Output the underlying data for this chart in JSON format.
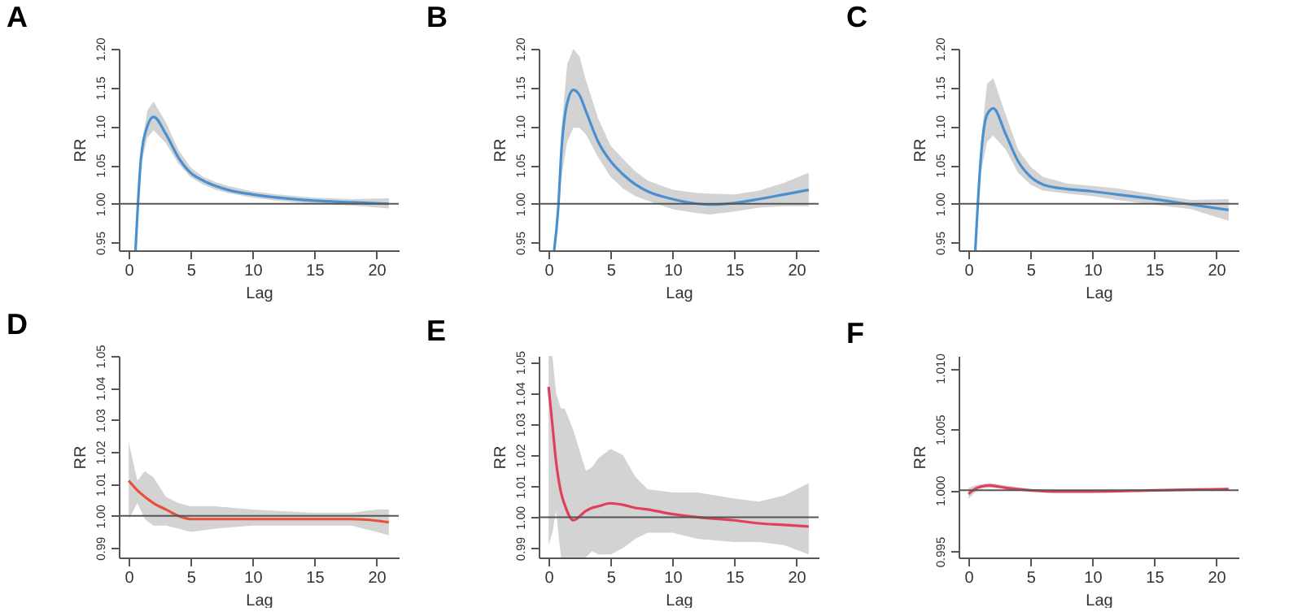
{
  "chart_data": [
    {
      "type": "line",
      "title": "A",
      "xlabel": "Lag",
      "ylabel": "RR",
      "x": [
        0.55,
        1,
        1.5,
        2,
        3,
        4,
        5,
        6,
        7,
        8,
        10,
        12,
        15,
        18,
        21
      ],
      "xlim": [
        -0.8,
        21.8
      ],
      "xticks": [
        0,
        5,
        10,
        15,
        20
      ],
      "ylim": [
        0.94,
        1.2
      ],
      "yticks": [
        {
          "value": 0.95,
          "label": "0.95"
        },
        {
          "value": 1,
          "label": "1.00"
        },
        {
          "value": 1.05,
          "label": "1.05"
        },
        {
          "value": 1.1,
          "label": "1.10"
        },
        {
          "value": 1.15,
          "label": "1.15"
        },
        {
          "value": 1.2,
          "label": "1.20"
        }
      ],
      "series": [
        {
          "color": "#4a90d0",
          "values": [
            0.94,
            1.06,
            1.1,
            1.112,
            1.09,
            1.06,
            1.04,
            1.03,
            1.023,
            1.018,
            1.012,
            1.008,
            1.004,
            1.002,
            1.0
          ],
          "lower": [
            0.94,
            1.05,
            1.085,
            1.095,
            1.078,
            1.052,
            1.034,
            1.025,
            1.018,
            1.014,
            1.008,
            1.004,
            1.0,
            0.998,
            0.994
          ],
          "upper": [
            0.94,
            1.07,
            1.12,
            1.132,
            1.105,
            1.07,
            1.047,
            1.035,
            1.028,
            1.023,
            1.016,
            1.012,
            1.008,
            1.006,
            1.007
          ]
        }
      ],
      "ref_lines": [
        {
          "axis": "y",
          "value": 1,
          "color": "#555555"
        }
      ]
    },
    {
      "type": "line",
      "title": "B",
      "xlabel": "Lag",
      "ylabel": "RR",
      "x": [
        0.45,
        0.8,
        1,
        1.5,
        2,
        2.5,
        3,
        4,
        5,
        6,
        7,
        8,
        10,
        12,
        13,
        15,
        17,
        19,
        21
      ],
      "xlim": [
        -0.8,
        21.8
      ],
      "xticks": [
        0,
        5,
        10,
        15,
        20
      ],
      "ylim": [
        0.94,
        1.2
      ],
      "yticks": [
        {
          "value": 0.95,
          "label": "0.95"
        },
        {
          "value": 1,
          "label": "1.00"
        },
        {
          "value": 1.05,
          "label": "1.05"
        },
        {
          "value": 1.1,
          "label": "1.10"
        },
        {
          "value": 1.15,
          "label": "1.15"
        },
        {
          "value": 1.2,
          "label": "1.20"
        }
      ],
      "series": [
        {
          "color": "#4a90d0",
          "values": [
            0.94,
            1.0,
            1.06,
            1.13,
            1.147,
            1.14,
            1.12,
            1.08,
            1.055,
            1.038,
            1.025,
            1.016,
            1.006,
            1.0,
            0.999,
            1.001,
            1.006,
            1.012,
            1.018
          ],
          "lower": [
            0.94,
            0.99,
            1.03,
            1.08,
            1.098,
            1.098,
            1.09,
            1.06,
            1.035,
            1.02,
            1.01,
            1.004,
            0.993,
            0.988,
            0.986,
            0.99,
            0.995,
            0.997,
            0.997
          ],
          "upper": [
            0.94,
            1.01,
            1.09,
            1.18,
            1.2,
            1.19,
            1.16,
            1.11,
            1.075,
            1.058,
            1.042,
            1.03,
            1.018,
            1.014,
            1.013,
            1.012,
            1.017,
            1.027,
            1.04
          ]
        }
      ],
      "ref_lines": [
        {
          "axis": "y",
          "value": 1,
          "color": "#555555"
        }
      ]
    },
    {
      "type": "line",
      "title": "C",
      "xlabel": "Lag",
      "ylabel": "RR",
      "x": [
        0.55,
        1,
        1.5,
        2,
        3,
        4,
        5,
        6,
        8,
        10,
        12,
        15,
        18,
        21
      ],
      "xlim": [
        -0.8,
        21.8
      ],
      "xticks": [
        0,
        5,
        10,
        15,
        20
      ],
      "ylim": [
        0.94,
        1.2
      ],
      "yticks": [
        {
          "value": 0.95,
          "label": "0.95"
        },
        {
          "value": 1,
          "label": "1.00"
        },
        {
          "value": 1.05,
          "label": "1.05"
        },
        {
          "value": 1.1,
          "label": "1.10"
        },
        {
          "value": 1.15,
          "label": "1.15"
        },
        {
          "value": 1.2,
          "label": "1.20"
        }
      ],
      "series": [
        {
          "color": "#4a90d0",
          "values": [
            0.94,
            1.06,
            1.115,
            1.123,
            1.09,
            1.055,
            1.035,
            1.025,
            1.019,
            1.016,
            1.012,
            1.006,
            0.999,
            0.992
          ],
          "lower": [
            0.94,
            1.04,
            1.08,
            1.088,
            1.07,
            1.04,
            1.025,
            1.017,
            1.013,
            1.01,
            1.005,
            0.999,
            0.993,
            0.978
          ],
          "upper": [
            0.94,
            1.08,
            1.155,
            1.162,
            1.115,
            1.07,
            1.048,
            1.035,
            1.026,
            1.023,
            1.02,
            1.012,
            1.005,
            1.006
          ]
        }
      ],
      "ref_lines": [
        {
          "axis": "y",
          "value": 1,
          "color": "#555555"
        }
      ]
    },
    {
      "type": "line",
      "title": "D",
      "xlabel": "Lag",
      "ylabel": "RR",
      "x": [
        0,
        0.7,
        1.3,
        2,
        3,
        4,
        5,
        7,
        10,
        15,
        18,
        20,
        21
      ],
      "xlim": [
        -0.8,
        21.8
      ],
      "xticks": [
        0,
        5,
        10,
        15,
        20
      ],
      "ylim": [
        0.987,
        1.05
      ],
      "yticks": [
        {
          "value": 0.99,
          "label": "0.99"
        },
        {
          "value": 1,
          "label": "1.00"
        },
        {
          "value": 1.01,
          "label": "1.01"
        },
        {
          "value": 1.02,
          "label": "1.02"
        },
        {
          "value": 1.03,
          "label": "1.03"
        },
        {
          "value": 1.04,
          "label": "1.04"
        },
        {
          "value": 1.05,
          "label": "1.05"
        }
      ],
      "series": [
        {
          "color": "#e8503a",
          "values": [
            1.011,
            1.008,
            1.006,
            1.004,
            1.002,
            1.0,
            0.999,
            0.999,
            0.999,
            0.999,
            0.999,
            0.9985,
            0.998
          ],
          "lower": [
            0.999,
            1.004,
            0.999,
            0.997,
            0.997,
            0.996,
            0.995,
            0.996,
            0.997,
            0.997,
            0.997,
            0.995,
            0.994
          ],
          "upper": [
            1.023,
            1.011,
            1.014,
            1.012,
            1.006,
            1.004,
            1.003,
            1.003,
            1.002,
            1.001,
            1.001,
            1.002,
            1.002
          ]
        }
      ],
      "ref_lines": [
        {
          "axis": "y",
          "value": 1,
          "color": "#555555"
        }
      ]
    },
    {
      "type": "line",
      "title": "E",
      "xlabel": "Lag",
      "ylabel": "RR",
      "x": [
        0,
        0.3,
        0.6,
        1,
        1.3,
        2,
        3,
        3.5,
        4,
        5,
        6,
        7,
        8,
        10,
        12,
        15,
        17,
        19,
        21
      ],
      "xlim": [
        -0.8,
        21.8
      ],
      "xticks": [
        0,
        5,
        10,
        15,
        20
      ],
      "ylim": [
        0.987,
        1.052
      ],
      "yticks": [
        {
          "value": 0.99,
          "label": "0.99"
        },
        {
          "value": 1,
          "label": "1.00"
        },
        {
          "value": 1.01,
          "label": "1.01"
        },
        {
          "value": 1.02,
          "label": "1.02"
        },
        {
          "value": 1.03,
          "label": "1.03"
        },
        {
          "value": 1.04,
          "label": "1.04"
        },
        {
          "value": 1.05,
          "label": "1.05"
        }
      ],
      "series": [
        {
          "color": "#e0405a",
          "values": [
            1.042,
            1.03,
            1.018,
            1.008,
            1.004,
            0.999,
            1.002,
            1.003,
            1.0035,
            1.0045,
            1.004,
            1.003,
            1.0025,
            1.001,
            1.0,
            0.999,
            0.998,
            0.9975,
            0.997
          ],
          "lower": [
            0.991,
            0.995,
            1.002,
            0.987,
            0.987,
            0.987,
            0.987,
            0.989,
            0.988,
            0.988,
            0.99,
            0.993,
            0.995,
            0.995,
            0.993,
            0.992,
            0.992,
            0.991,
            0.988
          ],
          "upper": [
            1.052,
            1.052,
            1.04,
            1.035,
            1.035,
            1.028,
            1.015,
            1.016,
            1.019,
            1.022,
            1.02,
            1.013,
            1.009,
            1.008,
            1.008,
            1.006,
            1.005,
            1.007,
            1.011
          ]
        }
      ],
      "ref_lines": [
        {
          "axis": "y",
          "value": 1,
          "color": "#555555"
        }
      ]
    },
    {
      "type": "line",
      "title": "F",
      "xlabel": "Lag",
      "ylabel": "RR",
      "x": [
        0,
        0.5,
        1,
        1.7,
        3,
        5,
        7,
        10,
        15,
        21
      ],
      "xlim": [
        -0.8,
        21.8
      ],
      "xticks": [
        0,
        5,
        10,
        15,
        20
      ],
      "ylim": [
        0.9945,
        1.011
      ],
      "yticks": [
        {
          "value": 0.995,
          "label": "0.995"
        },
        {
          "value": 1,
          "label": "1.000"
        },
        {
          "value": 1.005,
          "label": "1.005"
        },
        {
          "value": 1.01,
          "label": "1.010"
        }
      ],
      "series": [
        {
          "color": "#e0405a",
          "values": [
            0.9997,
            1.0001,
            1.0003,
            1.0004,
            1.0002,
            1.0,
            0.9999,
            0.9999,
            1.0,
            1.0001
          ],
          "lower": [
            0.9993,
            0.9998,
            1.0001,
            1.0002,
            1.0001,
            0.9999,
            0.9998,
            0.9998,
            0.9999,
            1.0
          ],
          "upper": [
            1.0002,
            1.0004,
            1.0005,
            1.0006,
            1.0004,
            1.0001,
            1.0,
            1.0,
            1.0,
            1.0002
          ]
        }
      ],
      "ref_lines": [
        {
          "axis": "y",
          "value": 1,
          "color": "#555555"
        }
      ]
    }
  ]
}
